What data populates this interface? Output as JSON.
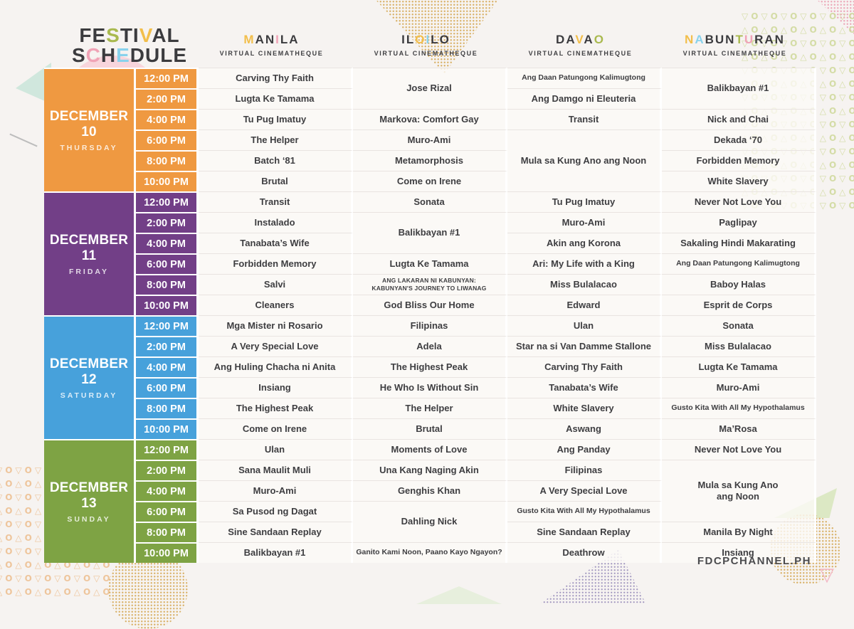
{
  "palette": {
    "dark": "#3B3B3E",
    "yellow": "#F2BE4A",
    "pink": "#F0A3B6",
    "blue": "#89D2EC",
    "green": "#A9B94E"
  },
  "title": {
    "lines": [
      {
        "text": "FESTIVAL",
        "colors": {
          "2": "green",
          "5": "yellow"
        }
      },
      {
        "text": "SCHEDULE",
        "colors": {
          "1": "pink",
          "3": "blue"
        }
      }
    ]
  },
  "venues": [
    {
      "name": "MANILA",
      "subtitle": "VIRTUAL CINEMATHEQUE",
      "colors": {
        "0": "yellow",
        "3": "pink"
      }
    },
    {
      "name": "ILOILO",
      "subtitle": "VIRTUAL CINEMATHEQUE",
      "colors": {
        "2": "yellow",
        "3": "blue"
      }
    },
    {
      "name": "DAVAO",
      "subtitle": "VIRTUAL CINEMATHEQUE",
      "colors": {
        "2": "yellow",
        "4": "green"
      }
    },
    {
      "name": "NABUNTURAN",
      "subtitle": "VIRTUAL CINEMATHEQUE",
      "colors": {
        "0": "yellow",
        "1": "blue",
        "5": "green",
        "6": "pink"
      }
    }
  ],
  "times": [
    "12:00 PM",
    "2:00 PM",
    "4:00 PM",
    "6:00 PM",
    "8:00 PM",
    "10:00 PM"
  ],
  "days": [
    {
      "date": "DECEMBER 10",
      "weekday": "THURSDAY",
      "color": "#EF9941",
      "venues": [
        {
          "cells": [
            {
              "t": "Carving Thy Faith"
            },
            {
              "t": "Lugta Ke Tamama"
            },
            {
              "t": "Tu Pug Imatuy"
            },
            {
              "t": "The Helper"
            },
            {
              "t": "Batch ‘81"
            },
            {
              "t": "Brutal"
            }
          ]
        },
        {
          "cells": [
            {
              "t": "Jose Rizal",
              "span": 2
            },
            {
              "t": "Markova: Comfort Gay"
            },
            {
              "t": "Muro-Ami"
            },
            {
              "t": "Metamorphosis"
            },
            {
              "t": "Come on Irene"
            }
          ]
        },
        {
          "cells": [
            {
              "t": "Ang Daan Patungong Kalimugtong",
              "size": "small"
            },
            {
              "t": "Ang Damgo ni Eleuteria"
            },
            {
              "t": "Transit"
            },
            {
              "t": "Mula sa Kung Ano ang Noon",
              "span": 3
            }
          ]
        },
        {
          "cells": [
            {
              "t": "Balikbayan #1",
              "span": 2
            },
            {
              "t": "Nick and Chai"
            },
            {
              "t": "Dekada ‘70"
            },
            {
              "t": "Forbidden Memory"
            },
            {
              "t": "White Slavery"
            }
          ]
        }
      ]
    },
    {
      "date": "DECEMBER 11",
      "weekday": "FRIDAY",
      "color": "#723F87",
      "venues": [
        {
          "cells": [
            {
              "t": "Transit"
            },
            {
              "t": "Instalado"
            },
            {
              "t": "Tanabata’s Wife"
            },
            {
              "t": "Forbidden Memory"
            },
            {
              "t": "Salvi"
            },
            {
              "t": "Cleaners"
            }
          ]
        },
        {
          "cells": [
            {
              "t": "Sonata"
            },
            {
              "t": "Balikbayan #1",
              "span": 2
            },
            {
              "t": "Lugta Ke Tamama"
            },
            {
              "t": "ANG LAKARAN NI KABUNYAN:",
              "t2": "KABUNYAN'S JOURNEY TO LIWANAG",
              "size": "tiny"
            },
            {
              "t": "God Bliss Our Home"
            }
          ]
        },
        {
          "cells": [
            {
              "t": "Tu Pug Imatuy"
            },
            {
              "t": "Muro-Ami"
            },
            {
              "t": "Akin ang Korona"
            },
            {
              "t": "Ari: My Life with a King"
            },
            {
              "t": "Miss Bulalacao"
            },
            {
              "t": "Edward"
            }
          ]
        },
        {
          "cells": [
            {
              "t": "Never Not Love You"
            },
            {
              "t": "Paglipay"
            },
            {
              "t": "Sakaling Hindi Makarating"
            },
            {
              "t": "Ang Daan Patungong Kalimugtong",
              "size": "small"
            },
            {
              "t": "Baboy Halas"
            },
            {
              "t": "Esprit de Corps"
            }
          ]
        }
      ]
    },
    {
      "date": "DECEMBER 12",
      "weekday": "SATURDAY",
      "color": "#47A1DB",
      "venues": [
        {
          "cells": [
            {
              "t": "Mga Mister ni Rosario"
            },
            {
              "t": "A Very Special Love"
            },
            {
              "t": "Ang Huling Chacha ni Anita"
            },
            {
              "t": "Insiang"
            },
            {
              "t": "The Highest Peak"
            },
            {
              "t": "Come on Irene"
            }
          ]
        },
        {
          "cells": [
            {
              "t": "Filipinas"
            },
            {
              "t": "Adela"
            },
            {
              "t": "The Highest Peak"
            },
            {
              "t": "He Who Is Without Sin"
            },
            {
              "t": "The Helper"
            },
            {
              "t": "Brutal"
            }
          ]
        },
        {
          "cells": [
            {
              "t": "Ulan"
            },
            {
              "t": "Star na si Van Damme Stallone"
            },
            {
              "t": "Carving Thy Faith"
            },
            {
              "t": "Tanabata’s Wife"
            },
            {
              "t": "White Slavery"
            },
            {
              "t": "Aswang"
            }
          ]
        },
        {
          "cells": [
            {
              "t": "Sonata"
            },
            {
              "t": "Miss Bulalacao"
            },
            {
              "t": "Lugta Ke Tamama"
            },
            {
              "t": "Muro-Ami"
            },
            {
              "t": "Gusto Kita With All My Hypothalamus",
              "size": "small"
            },
            {
              "t": "Ma’Rosa"
            }
          ]
        }
      ]
    },
    {
      "date": "DECEMBER 13",
      "weekday": "SUNDAY",
      "color": "#7EA344",
      "venues": [
        {
          "cells": [
            {
              "t": "Ulan"
            },
            {
              "t": "Sana Maulit Muli"
            },
            {
              "t": "Muro-Ami"
            },
            {
              "t": "Sa Pusod ng Dagat"
            },
            {
              "t": "Sine Sandaan Replay"
            },
            {
              "t": "Balikbayan #1"
            }
          ]
        },
        {
          "cells": [
            {
              "t": "Moments of Love"
            },
            {
              "t": "Una Kang Naging Akin"
            },
            {
              "t": "Genghis Khan"
            },
            {
              "t": "Dahling Nick",
              "span": 2
            },
            {
              "t": "Ganito Kami Noon, Paano Kayo Ngayon?",
              "size": "small"
            }
          ]
        },
        {
          "cells": [
            {
              "t": "Ang Panday"
            },
            {
              "t": "Filipinas"
            },
            {
              "t": "A Very Special Love"
            },
            {
              "t": "Gusto Kita With All My Hypothalamus",
              "size": "small"
            },
            {
              "t": "Sine Sandaan Replay"
            },
            {
              "t": "Deathrow"
            }
          ]
        },
        {
          "cells": [
            {
              "t": "Never Not Love You"
            },
            {
              "t": "Mula sa Kung Ano",
              "t2": "ang Noon",
              "span": 3
            },
            {
              "t": "Manila By Night"
            },
            {
              "t": "Insiang"
            }
          ]
        }
      ]
    }
  ],
  "footer": {
    "text": "FDCPCHANNEL.PH"
  }
}
